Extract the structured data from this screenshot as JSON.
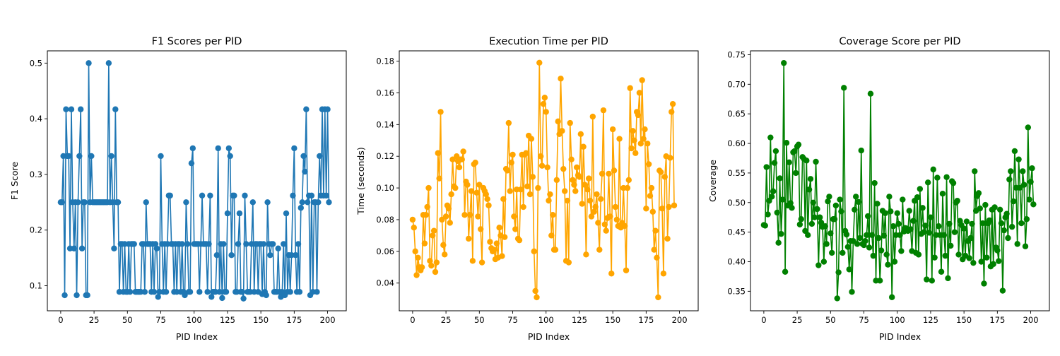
{
  "chart_data": [
    {
      "type": "line",
      "title": "F1 Scores per PID",
      "xlabel": "PID Index",
      "ylabel": "F1 Score",
      "color": "#1f77b4",
      "xlim": [
        -10,
        214
      ],
      "ylim": [
        0.055,
        0.522
      ],
      "xticks": [
        0,
        25,
        50,
        75,
        100,
        125,
        150,
        175,
        200
      ],
      "yticks": [
        0.1,
        0.2,
        0.3,
        0.4,
        0.5
      ],
      "ytick_labels": [
        "0.1",
        "0.2",
        "0.3",
        "0.4",
        "0.5"
      ],
      "values": [
        0.25,
        0.25,
        0.333,
        0.083,
        0.417,
        0.333,
        0.333,
        0.167,
        0.417,
        0.25,
        0.167,
        0.25,
        0.083,
        0.25,
        0.333,
        0.417,
        0.167,
        0.25,
        0.25,
        0.083,
        0.083,
        0.5,
        0.25,
        0.333,
        0.25,
        0.25,
        0.25,
        0.25,
        0.25,
        0.25,
        0.25,
        0.25,
        0.25,
        0.25,
        0.25,
        0.25,
        0.5,
        0.25,
        0.333,
        0.25,
        0.167,
        0.417,
        0.25,
        0.25,
        0.089,
        0.175,
        0.175,
        0.089,
        0.175,
        0.089,
        0.089,
        0.175,
        0.089,
        0.175,
        0.175,
        0.175,
        0.089,
        0.089,
        0.089,
        0.089,
        0.089,
        0.175,
        0.175,
        0.089,
        0.25,
        0.175,
        0.175,
        0.175,
        0.089,
        0.175,
        0.089,
        0.175,
        0.167,
        0.08,
        0.089,
        0.333,
        0.175,
        0.089,
        0.175,
        0.089,
        0.175,
        0.262,
        0.262,
        0.175,
        0.175,
        0.089,
        0.175,
        0.089,
        0.175,
        0.175,
        0.089,
        0.175,
        0.089,
        0.083,
        0.25,
        0.175,
        0.089,
        0.089,
        0.32,
        0.347,
        0.175,
        0.175,
        0.175,
        0.175,
        0.089,
        0.175,
        0.262,
        0.175,
        0.175,
        0.175,
        0.089,
        0.175,
        0.262,
        0.08,
        0.089,
        0.089,
        0.089,
        0.155,
        0.347,
        0.089,
        0.175,
        0.078,
        0.175,
        0.089,
        0.089,
        0.23,
        0.347,
        0.333,
        0.155,
        0.262,
        0.262,
        0.089,
        0.089,
        0.175,
        0.23,
        0.089,
        0.089,
        0.077,
        0.262,
        0.175,
        0.089,
        0.089,
        0.089,
        0.175,
        0.25,
        0.089,
        0.175,
        0.175,
        0.089,
        0.175,
        0.175,
        0.085,
        0.175,
        0.089,
        0.083,
        0.25,
        0.175,
        0.155,
        0.175,
        0.175,
        0.089,
        0.089,
        0.089,
        0.167,
        0.089,
        0.08,
        0.089,
        0.175,
        0.083,
        0.23,
        0.089,
        0.155,
        0.089,
        0.155,
        0.262,
        0.347,
        0.155,
        0.089,
        0.175,
        0.089,
        0.24,
        0.25,
        0.333,
        0.305,
        0.417,
        0.25,
        0.262,
        0.083,
        0.262,
        0.089,
        0.25,
        0.25,
        0.089,
        0.25,
        0.333,
        0.262,
        0.417,
        0.262,
        0.417,
        0.262,
        0.417,
        0.25
      ]
    },
    {
      "type": "line",
      "title": "Execution Time per PID",
      "xlabel": "PID Index",
      "ylabel": "Time (seconds)",
      "color": "#ffa500",
      "xlim": [
        -10,
        214
      ],
      "ylim": [
        0.0225,
        0.1865
      ],
      "xticks": [
        0,
        25,
        50,
        75,
        100,
        125,
        150,
        175,
        200
      ],
      "yticks": [
        0.04,
        0.06,
        0.08,
        0.1,
        0.12,
        0.14,
        0.16,
        0.18
      ],
      "ytick_labels": [
        "0.04",
        "0.06",
        "0.08",
        "0.10",
        "0.12",
        "0.14",
        "0.16",
        "0.18"
      ],
      "values": [
        0.08,
        0.075,
        0.06,
        0.045,
        0.056,
        0.05,
        0.048,
        0.05,
        0.083,
        0.065,
        0.083,
        0.088,
        0.1,
        0.054,
        0.051,
        0.07,
        0.073,
        0.047,
        0.053,
        0.122,
        0.106,
        0.148,
        0.08,
        0.064,
        0.058,
        0.082,
        0.089,
        0.087,
        0.078,
        0.096,
        0.118,
        0.101,
        0.1,
        0.12,
        0.117,
        0.113,
        0.118,
        0.118,
        0.123,
        0.083,
        0.104,
        0.102,
        0.068,
        0.083,
        0.098,
        0.054,
        0.115,
        0.116,
        0.097,
        0.082,
        0.102,
        0.074,
        0.053,
        0.1,
        0.098,
        0.096,
        0.093,
        0.089,
        0.066,
        0.062,
        0.06,
        0.061,
        0.055,
        0.065,
        0.056,
        0.075,
        0.07,
        0.057,
        0.093,
        0.069,
        0.112,
        0.111,
        0.141,
        0.098,
        0.116,
        0.121,
        0.082,
        0.074,
        0.099,
        0.068,
        0.067,
        0.099,
        0.121,
        0.088,
        0.121,
        0.122,
        0.101,
        0.133,
        0.096,
        0.131,
        0.107,
        0.06,
        0.035,
        0.031,
        0.1,
        0.179,
        0.12,
        0.114,
        0.153,
        0.157,
        0.148,
        0.113,
        0.092,
        0.096,
        0.07,
        0.083,
        0.061,
        0.061,
        0.105,
        0.142,
        0.134,
        0.169,
        0.136,
        0.112,
        0.098,
        0.054,
        0.092,
        0.053,
        0.141,
        0.118,
        0.105,
        0.102,
        0.098,
        0.113,
        0.108,
        0.107,
        0.134,
        0.09,
        0.126,
        0.102,
        0.058,
        0.099,
        0.106,
        0.092,
        0.082,
        0.145,
        0.085,
        0.088,
        0.096,
        0.078,
        0.061,
        0.093,
        0.109,
        0.149,
        0.077,
        0.073,
        0.081,
        0.109,
        0.082,
        0.046,
        0.137,
        0.111,
        0.088,
        0.08,
        0.076,
        0.131,
        0.075,
        0.078,
        0.1,
        0.076,
        0.048,
        0.1,
        0.105,
        0.163,
        0.125,
        0.136,
        0.13,
        0.122,
        0.148,
        0.146,
        0.16,
        0.128,
        0.168,
        0.131,
        0.137,
        0.087,
        0.128,
        0.115,
        0.095,
        0.1,
        0.085,
        0.061,
        0.073,
        0.056,
        0.031,
        0.111,
        0.11,
        0.087,
        0.046,
        0.107,
        0.12,
        0.068,
        0.088,
        0.119,
        0.148,
        0.153,
        0.089
      ]
    },
    {
      "type": "line",
      "title": "Coverage Score per PID",
      "xlabel": "PID Index",
      "ylabel": "Coverage",
      "color": "#008000",
      "xlim": [
        -10,
        214
      ],
      "ylim": [
        0.317,
        0.7565
      ],
      "xticks": [
        0,
        25,
        50,
        75,
        100,
        125,
        150,
        175,
        200
      ],
      "yticks": [
        0.35,
        0.4,
        0.45,
        0.5,
        0.55,
        0.6,
        0.65,
        0.7,
        0.75
      ],
      "ytick_labels": [
        "0.35",
        "0.40",
        "0.45",
        "0.50",
        "0.55",
        "0.60",
        "0.65",
        "0.70",
        "0.75"
      ],
      "values": [
        0.462,
        0.461,
        0.56,
        0.48,
        0.503,
        0.61,
        0.51,
        0.519,
        0.567,
        0.587,
        0.483,
        0.432,
        0.541,
        0.447,
        0.505,
        0.736,
        0.383,
        0.601,
        0.495,
        0.568,
        0.499,
        0.491,
        0.585,
        0.587,
        0.55,
        0.595,
        0.598,
        0.463,
        0.472,
        0.577,
        0.574,
        0.452,
        0.571,
        0.445,
        0.522,
        0.54,
        0.464,
        0.5,
        0.475,
        0.569,
        0.489,
        0.394,
        0.475,
        0.466,
        0.459,
        0.4,
        0.46,
        0.43,
        0.502,
        0.51,
        0.448,
        0.415,
        0.472,
        0.472,
        0.495,
        0.338,
        0.382,
        0.505,
        0.485,
        0.415,
        0.694,
        0.452,
        0.446,
        0.425,
        0.387,
        0.435,
        0.349,
        0.435,
        0.488,
        0.51,
        0.43,
        0.501,
        0.44,
        0.588,
        0.43,
        0.428,
        0.435,
        0.445,
        0.477,
        0.424,
        0.684,
        0.445,
        0.41,
        0.533,
        0.368,
        0.498,
        0.44,
        0.368,
        0.419,
        0.486,
        0.444,
        0.482,
        0.412,
        0.395,
        0.51,
        0.485,
        0.34,
        0.46,
        0.4,
        0.445,
        0.482,
        0.464,
        0.445,
        0.418,
        0.505,
        0.451,
        0.457,
        0.456,
        0.452,
        0.486,
        0.455,
        0.418,
        0.469,
        0.503,
        0.415,
        0.509,
        0.412,
        0.523,
        0.447,
        0.491,
        0.45,
        0.461,
        0.37,
        0.534,
        0.449,
        0.475,
        0.368,
        0.556,
        0.407,
        0.445,
        0.542,
        0.46,
        0.445,
        0.383,
        0.515,
        0.445,
        0.41,
        0.543,
        0.372,
        0.464,
        0.427,
        0.536,
        0.533,
        0.45,
        0.5,
        0.503,
        0.412,
        0.469,
        0.462,
        0.404,
        0.456,
        0.41,
        0.468,
        0.435,
        0.406,
        0.44,
        0.464,
        0.398,
        0.553,
        0.486,
        0.511,
        0.516,
        0.49,
        0.4,
        0.465,
        0.363,
        0.496,
        0.407,
        0.465,
        0.47,
        0.392,
        0.488,
        0.396,
        0.492,
        0.424,
        0.419,
        0.401,
        0.488,
        0.465,
        0.351,
        0.453,
        0.475,
        0.481,
        0.44,
        0.539,
        0.553,
        0.459,
        0.502,
        0.587,
        0.525,
        0.43,
        0.573,
        0.525,
        0.465,
        0.553,
        0.53,
        0.426,
        0.472,
        0.627,
        0.505,
        0.535,
        0.558,
        0.497
      ]
    }
  ]
}
